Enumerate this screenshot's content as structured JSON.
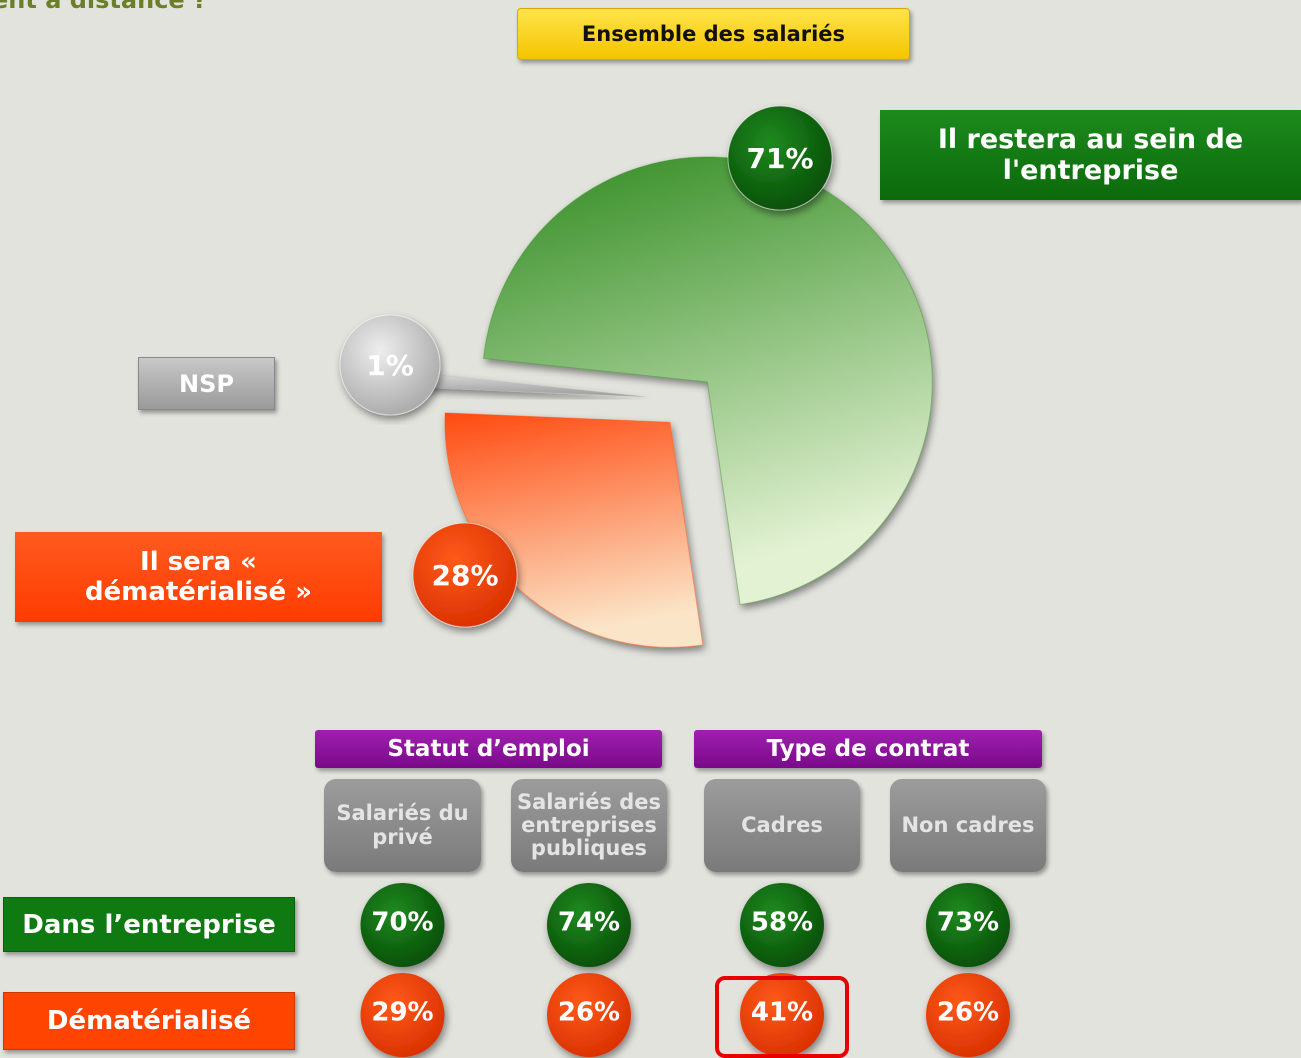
{
  "header": {
    "fragment": "ent à distance ?"
  },
  "chart_data": {
    "type": "pie",
    "title": "Ensemble des salariés",
    "categories": [
      "Il restera au sein de l'entreprise",
      "Il sera « dématérialisé »",
      "NSP"
    ],
    "values": [
      71,
      28,
      1
    ],
    "value_labels": [
      "71%",
      "28%",
      "1%"
    ],
    "colors": [
      "#2e8a1e",
      "#ff4a10",
      "#b8b8b8"
    ]
  },
  "breakdown": {
    "groups": [
      {
        "name": "Statut d’emploi",
        "columns": [
          "Salariés du privé",
          "Salariés des entreprises publiques"
        ]
      },
      {
        "name": "Type de contrat",
        "columns": [
          "Cadres",
          "Non cadres"
        ]
      }
    ],
    "rows": [
      {
        "name": "Dans l’entreprise",
        "color": "#0f7a12",
        "cells": [
          "70%",
          "74%",
          "58%",
          "73%"
        ]
      },
      {
        "name": "Dématérialisé",
        "color": "#ff4400",
        "cells": [
          "29%",
          "26%",
          "41%",
          "26%"
        ]
      }
    ]
  }
}
